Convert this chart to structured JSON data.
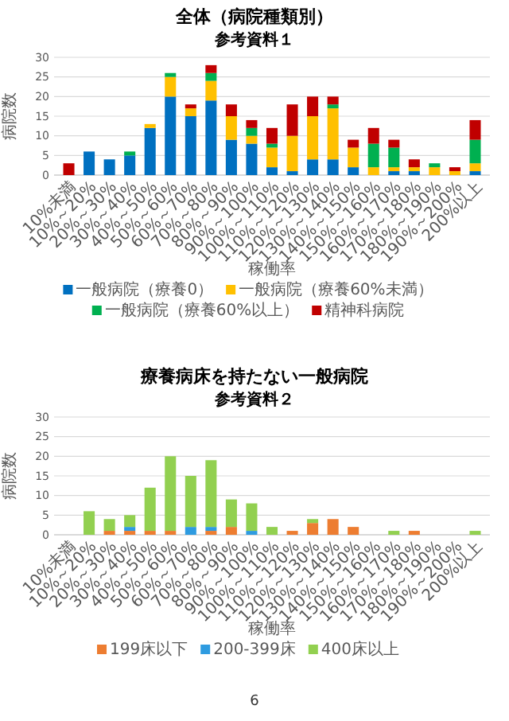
{
  "chart_data": [
    {
      "type": "bar",
      "title": "全体（病院種類別）",
      "subtitle": "参考資料１",
      "xlabel": "稼働率",
      "ylabel": "病院数",
      "stacked": true,
      "grid": "y",
      "legend": "bottom",
      "ylim": [
        0,
        30
      ],
      "yticks": [
        0,
        5,
        10,
        15,
        20,
        25,
        30
      ],
      "categories": [
        "10%未満",
        "10%～20%",
        "20%～30%",
        "30%～40%",
        "40%～50%",
        "50%～60%",
        "60%～70%",
        "70%～80%",
        "80%～90%",
        "90%～100%",
        "100%～110%",
        "110%～120%",
        "120%～130%",
        "130%～140%",
        "140%～150%",
        "150%～160%",
        "160%～170%",
        "170%～180%",
        "180%～190%",
        "190%～200%",
        "200%以上"
      ],
      "series": [
        {
          "name": "一般病院（療養0）",
          "color": "#0070c0",
          "values": [
            0,
            6,
            4,
            5,
            12,
            20,
            15,
            19,
            9,
            8,
            2,
            1,
            4,
            4,
            2,
            0,
            1,
            1,
            0,
            0,
            1
          ]
        },
        {
          "name": "一般病院（療養60%未満）",
          "color": "#ffc000",
          "values": [
            0,
            0,
            0,
            0,
            1,
            5,
            2,
            5,
            6,
            2,
            5,
            9,
            11,
            13,
            5,
            2,
            1,
            1,
            2,
            1,
            2
          ]
        },
        {
          "name": "一般病院（療養60%以上）",
          "color": "#00b050",
          "values": [
            0,
            0,
            0,
            1,
            0,
            1,
            0,
            2,
            0,
            2,
            1,
            0,
            0,
            1,
            0,
            6,
            5,
            0,
            1,
            0,
            6
          ]
        },
        {
          "name": "精神科病院",
          "color": "#c00000",
          "values": [
            3,
            0,
            0,
            0,
            0,
            0,
            1,
            2,
            3,
            2,
            4,
            8,
            5,
            2,
            2,
            4,
            2,
            2,
            0,
            1,
            5
          ]
        }
      ]
    },
    {
      "type": "bar",
      "title": "療養病床を持たない一般病院",
      "subtitle": "参考資料２",
      "xlabel": "稼働率",
      "ylabel": "病院数",
      "stacked": true,
      "grid": "y",
      "legend": "bottom",
      "ylim": [
        0,
        30
      ],
      "yticks": [
        0,
        5,
        10,
        15,
        20,
        25,
        30
      ],
      "annotations": [
        "6"
      ],
      "categories": [
        "10%未満",
        "10%～20%",
        "20%～30%",
        "30%～40%",
        "40%～50%",
        "50%～60%",
        "60%～70%",
        "70%～80%",
        "80%～90%",
        "90%～100%",
        "100%～110%",
        "110%～120%",
        "120%～130%",
        "130%～140%",
        "140%～150%",
        "150%～160%",
        "160%～170%",
        "170%～180%",
        "180%～190%",
        "190%～200%",
        "200%以上"
      ],
      "series": [
        {
          "name": "199床以下",
          "color": "#ed7d31",
          "values": [
            0,
            0,
            1,
            1,
            1,
            1,
            0,
            1,
            2,
            0,
            0,
            1,
            3,
            4,
            2,
            0,
            0,
            1,
            0,
            0,
            0
          ]
        },
        {
          "name": "200-399床",
          "color": "#2e9be0",
          "values": [
            0,
            0,
            0,
            1,
            0,
            0,
            2,
            1,
            0,
            1,
            0,
            0,
            0,
            0,
            0,
            0,
            0,
            0,
            0,
            0,
            0
          ]
        },
        {
          "name": "400床以上",
          "color": "#92d050",
          "values": [
            0,
            6,
            3,
            3,
            11,
            19,
            13,
            17,
            7,
            7,
            2,
            0,
            1,
            0,
            0,
            0,
            1,
            0,
            0,
            0,
            1
          ]
        }
      ]
    }
  ]
}
